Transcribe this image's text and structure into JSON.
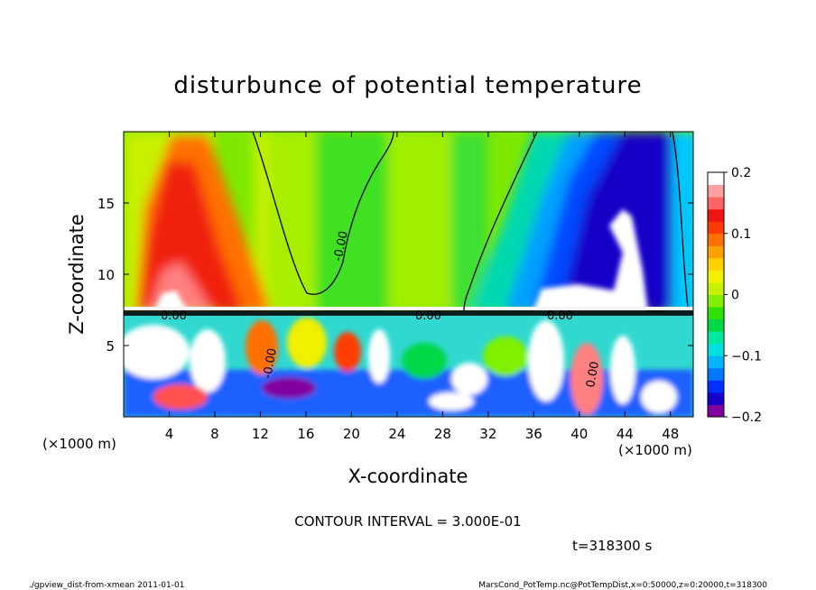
{
  "chart_data": {
    "type": "heatmap",
    "title": "disturbunce of potential temperature",
    "xlabel": "X-coordinate",
    "ylabel": "Z-coordinate",
    "x_unit": "(×1000 m)",
    "y_unit": "(×1000 m)",
    "xlim": [
      0,
      50
    ],
    "ylim": [
      0,
      20
    ],
    "x_ticks": [
      "4",
      "8",
      "12",
      "16",
      "20",
      "24",
      "28",
      "32",
      "36",
      "40",
      "44",
      "48"
    ],
    "y_ticks": [
      "5",
      "10",
      "15"
    ],
    "colorbar": {
      "range": [
        -0.2,
        0.2
      ],
      "tick_labels": [
        "0.2",
        "0.1",
        "0",
        "−0.1",
        "−0.2"
      ],
      "colors": [
        "#8000a0",
        "#1400c8",
        "#0030ff",
        "#0078ff",
        "#00b4ff",
        "#00e0e0",
        "#00e8a0",
        "#00d846",
        "#30e000",
        "#80f000",
        "#c8f000",
        "#f0f000",
        "#ffd000",
        "#ffa000",
        "#ff7000",
        "#ff3c00",
        "#f01414",
        "#ff6464",
        "#ffa0a0",
        "#ffffff"
      ]
    },
    "contour_labels": [
      "0.00",
      "-0.00",
      "0.00",
      "0.00",
      "-0.00",
      "0.00"
    ],
    "contour_interval_text": "CONTOUR INTERVAL = 3.000E-01",
    "time_text": "t=318300 s"
  },
  "footer": {
    "left": "./gpview_dist-from-xmean  2011-01-01",
    "right": "MarsCond_PotTemp.nc@PotTempDist,x=0:50000,z=0:20000,t=318300"
  }
}
